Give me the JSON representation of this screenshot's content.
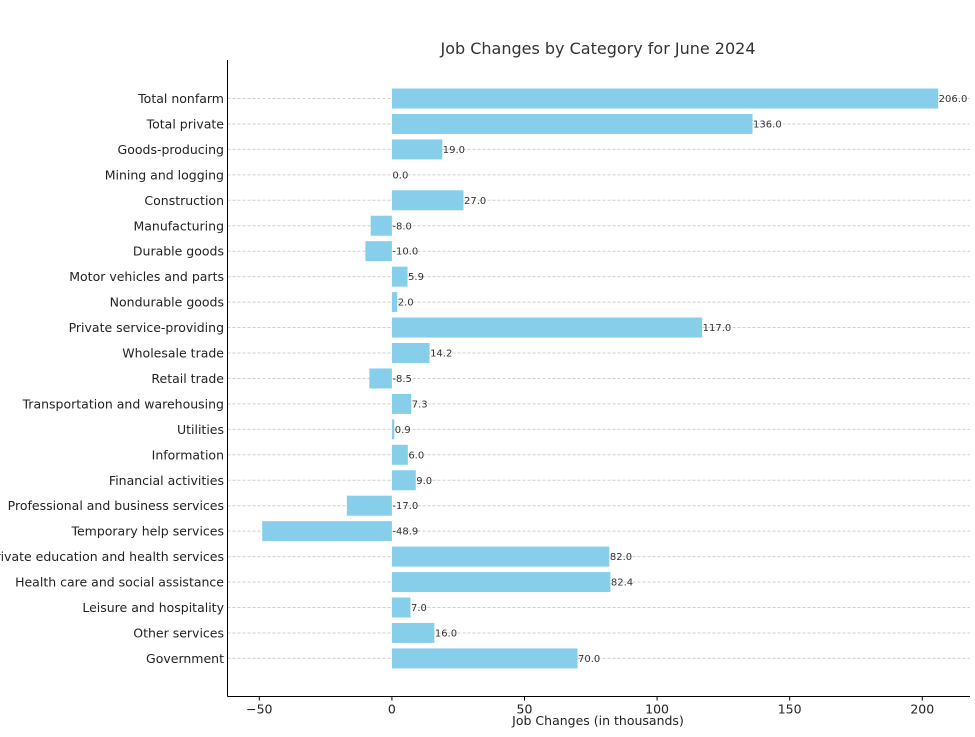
{
  "chart_data": {
    "type": "bar",
    "orientation": "horizontal",
    "title": "Job Changes by Category for June 2024",
    "xlabel": "Job Changes (in thousands)",
    "ylabel": "",
    "xlim": [
      -62,
      218
    ],
    "xticks": [
      -50,
      0,
      50,
      100,
      150,
      200
    ],
    "xtick_labels": [
      "−50",
      "0",
      "50",
      "100",
      "150",
      "200"
    ],
    "grid": "horizontal dashed",
    "bar_color": "#87CEEB",
    "categories": [
      "Total nonfarm",
      "Total private",
      "Goods-producing",
      "Mining and logging",
      "Construction",
      "Manufacturing",
      "Durable goods",
      "Motor vehicles and parts",
      "Nondurable goods",
      "Private service-providing",
      "Wholesale trade",
      "Retail trade",
      "Transportation and warehousing",
      "Utilities",
      "Information",
      "Financial activities",
      "Professional and business services",
      "Temporary help services",
      "Private education and health services",
      "Health care and social assistance",
      "Leisure and hospitality",
      "Other services",
      "Government"
    ],
    "values": [
      206.0,
      136.0,
      19.0,
      0.0,
      27.0,
      -8.0,
      -10.0,
      5.9,
      2.0,
      117.0,
      14.2,
      -8.5,
      7.3,
      0.9,
      6.0,
      9.0,
      -17.0,
      -48.9,
      82.0,
      82.4,
      7.0,
      16.0,
      70.0
    ],
    "value_labels": [
      "206.0",
      "136.0",
      "19.0",
      "0.0",
      "27.0",
      "-8.0",
      "-10.0",
      "5.9",
      "2.0",
      "117.0",
      "14.2",
      "-8.5",
      "7.3",
      "0.9",
      "6.0",
      "9.0",
      "-17.0",
      "-48.9",
      "82.0",
      "82.4",
      "7.0",
      "16.0",
      "70.0"
    ]
  }
}
